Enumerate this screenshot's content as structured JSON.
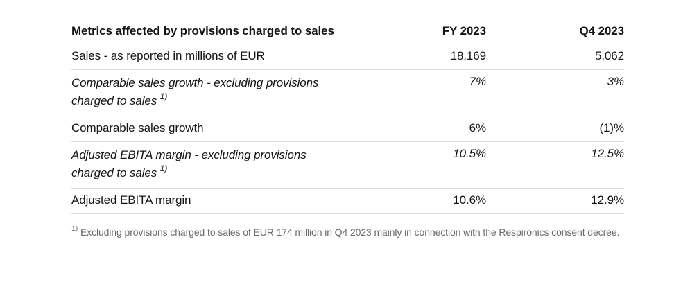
{
  "colors": {
    "text": "#141414",
    "muted": "#6a6a6a",
    "divider": "#dcdcdc",
    "background": "#ffffff"
  },
  "table": {
    "title": "Metrics affected by provisions charged to sales",
    "columns": [
      "FY 2023",
      "Q4 2023"
    ],
    "rows": [
      {
        "label": "Sales - as reported in millions of EUR",
        "sup": "",
        "fy2023": "18,169",
        "q42023": "5,062",
        "emphasis": false
      },
      {
        "label": "Comparable sales growth - excluding provisions charged to sales",
        "sup": "1)",
        "fy2023": "7%",
        "q42023": "3%",
        "emphasis": true
      },
      {
        "label": "Comparable sales growth",
        "sup": "",
        "fy2023": "6%",
        "q42023": "(1)%",
        "emphasis": false
      },
      {
        "label": "Adjusted EBITA margin - excluding provisions charged to sales",
        "sup": "1)",
        "fy2023": "10.5%",
        "q42023": "12.5%",
        "emphasis": true
      },
      {
        "label": "Adjusted EBITA margin",
        "sup": "",
        "fy2023": "10.6%",
        "q42023": "12.9%",
        "emphasis": false
      }
    ]
  },
  "footnote": {
    "ref": "1)",
    "text": "Excluding provisions charged to sales of EUR 174 million in Q4 2023 mainly in connection with the Respironics consent decree."
  }
}
